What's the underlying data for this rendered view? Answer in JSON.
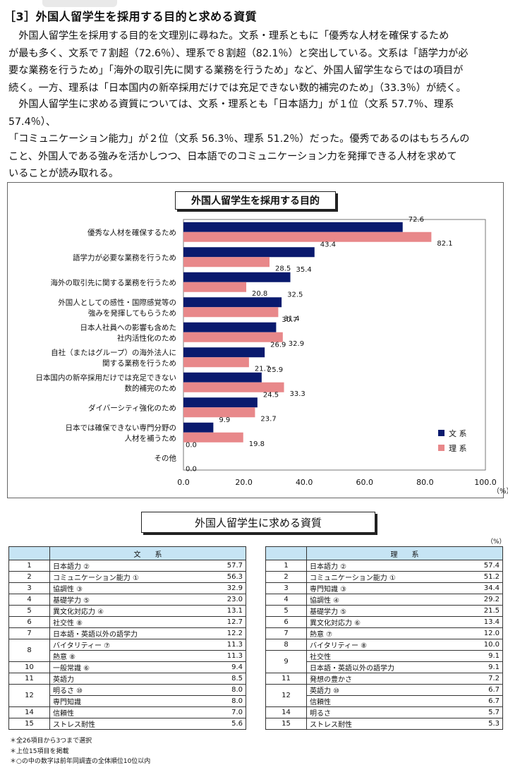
{
  "section": {
    "number": "［3］",
    "title": "外国人留学生を採用する目的と求める資質"
  },
  "paragraphs": [
    [
      "外国人留学生を採用する目的を文理別に尋ねた。文系・理系ともに「優秀な人材を確保するため",
      "が最も多く、文系で７割超（72.6％）、理系で８割超（82.1％）と突出している。文系は「語学力が必",
      "要な業務を行うため」「海外の取引先に関する業務を行うため」など、外国人留学生ならではの項目が",
      "続く。一方、理系は「日本国内の新卒採用だけでは充足できない数的補完のため」（33.3％）が続く。"
    ],
    [
      "外国人留学生に求める資質については、文系・理系とも「日本語力」が１位（文系 57.7％、理系 57.4％）、",
      "「コミュニケーション能力」が２位（文系 56.3％、理系 51.2％）だった。優秀であるのはもちろんの",
      "こと、外国人である強みを活かしつつ、日本語でのコミュニケーション力を発揮できる人材を求めて",
      "いることが読み取れる。"
    ]
  ],
  "chart_data": {
    "type": "bar",
    "orientation": "horizontal",
    "title": "外国人留学生を採用する目的",
    "categories": [
      [
        "優秀な人材を確保するため"
      ],
      [
        "語学力が必要な業務を行うため"
      ],
      [
        "海外の取引先に関する業務を行うため"
      ],
      [
        "外国人としての感性・国際感覚等の",
        "強みを発揮してもらうため"
      ],
      [
        "日本人社員への影響も含めた",
        "社内活性化のため"
      ],
      [
        "自社（またはグループ）の海外法人に",
        "関する業務を行うため"
      ],
      [
        "日本国内の新卒採用だけでは充足できない",
        "数的補完のため"
      ],
      [
        "ダイバーシティ強化のため"
      ],
      [
        "日本では確保できない専門分野の",
        "人材を補うため"
      ],
      [
        "その他"
      ]
    ],
    "series": [
      {
        "name": "文 系",
        "color": "#0a1a6e",
        "values": [
          72.6,
          43.4,
          35.4,
          32.5,
          30.7,
          26.9,
          25.9,
          24.5,
          9.9,
          0.0
        ]
      },
      {
        "name": "理 系",
        "color": "#e8888a",
        "values": [
          82.1,
          28.5,
          20.8,
          31.4,
          32.9,
          21.7,
          33.3,
          23.7,
          19.8,
          0.0
        ]
      }
    ],
    "xlim": [
      0,
      100
    ],
    "xticks": [
      "0.0",
      "20.0",
      "40.0",
      "60.0",
      "80.0",
      "100.0"
    ],
    "unit": "（%）",
    "legend_position": "right"
  },
  "table_section": {
    "title": "外国人留学生に求める資質",
    "unit": "（%）",
    "left": {
      "header": "文　　系",
      "rows": [
        {
          "rank": "1",
          "item": "日本語力 ②",
          "value": "57.7"
        },
        {
          "rank": "2",
          "item": "コミュニケーション能力 ①",
          "value": "56.3"
        },
        {
          "rank": "3",
          "item": "協調性 ③",
          "value": "32.9"
        },
        {
          "rank": "4",
          "item": "基礎学力 ⑤",
          "value": "23.0"
        },
        {
          "rank": "5",
          "item": "異文化対応力 ④",
          "value": "13.1"
        },
        {
          "rank": "6",
          "item": "社交性 ⑧",
          "value": "12.7"
        },
        {
          "rank": "7",
          "item": "日本語・英語以外の語学力",
          "value": "12.2"
        },
        {
          "rank": "8",
          "item": "バイタリティー ⑦",
          "value": "11.3"
        },
        {
          "rank": "",
          "item": "熱意 ⑧",
          "value": "11.3"
        },
        {
          "rank": "10",
          "item": "一般常識 ⑥",
          "value": "9.4"
        },
        {
          "rank": "11",
          "item": "英語力",
          "value": "8.5"
        },
        {
          "rank": "12",
          "item": "明るさ ⑩",
          "value": "8.0"
        },
        {
          "rank": "",
          "item": "専門知識",
          "value": "8.0"
        },
        {
          "rank": "14",
          "item": "信頼性",
          "value": "7.0"
        },
        {
          "rank": "15",
          "item": "ストレス耐性",
          "value": "5.6"
        }
      ]
    },
    "right": {
      "header": "理　　系",
      "rows": [
        {
          "rank": "1",
          "item": "日本語力 ②",
          "value": "57.4"
        },
        {
          "rank": "2",
          "item": "コミュニケーション能力 ①",
          "value": "51.2"
        },
        {
          "rank": "3",
          "item": "専門知識 ③",
          "value": "34.4"
        },
        {
          "rank": "4",
          "item": "協調性 ④",
          "value": "29.2"
        },
        {
          "rank": "5",
          "item": "基礎学力 ⑤",
          "value": "21.5"
        },
        {
          "rank": "6",
          "item": "異文化対応力 ⑥",
          "value": "13.4"
        },
        {
          "rank": "7",
          "item": "熱意 ⑦",
          "value": "12.0"
        },
        {
          "rank": "8",
          "item": "バイタリティー ⑧",
          "value": "10.0"
        },
        {
          "rank": "9",
          "item": "社交性",
          "value": "9.1"
        },
        {
          "rank": "",
          "item": "日本語・英語以外の語学力",
          "value": "9.1"
        },
        {
          "rank": "11",
          "item": "発想の豊かさ",
          "value": "7.2"
        },
        {
          "rank": "12",
          "item": "英語力 ⑩",
          "value": "6.7"
        },
        {
          "rank": "",
          "item": "信頼性",
          "value": "6.7"
        },
        {
          "rank": "14",
          "item": "明るさ",
          "value": "5.7"
        },
        {
          "rank": "15",
          "item": "ストレス耐性",
          "value": "5.3"
        }
      ]
    }
  },
  "notes": [
    "＊全26項目から3つまで選択",
    "＊上位15項目を掲載",
    "＊○の中の数字は前年同調査の全体順位10位以内"
  ]
}
